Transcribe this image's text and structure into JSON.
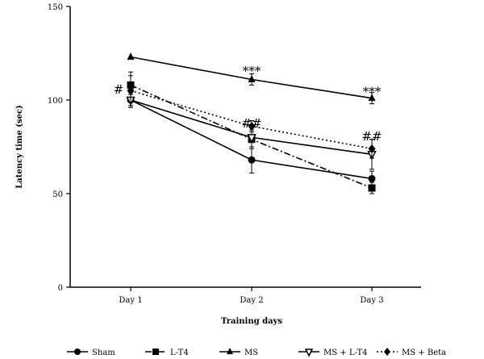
{
  "chart_data": {
    "type": "line",
    "title": "",
    "xlabel": "Training days",
    "ylabel": "Latency time (sec)",
    "categories": [
      "Day 1",
      "Day 2",
      "Day 3"
    ],
    "yticks": [
      "0",
      "50",
      "100",
      "150"
    ],
    "ylim": [
      0,
      150
    ],
    "grid": false,
    "legend_position": "bottom",
    "series": [
      {
        "name": "Sham",
        "marker": "circle",
        "dash": "solid",
        "values": [
          100,
          68,
          58
        ],
        "errors": [
          4,
          7,
          4
        ]
      },
      {
        "name": "L-T4",
        "marker": "square",
        "dash": "dashdot",
        "values": [
          108,
          79,
          53
        ],
        "errors": [
          7,
          5,
          3
        ]
      },
      {
        "name": "MS",
        "marker": "triangle-up",
        "dash": "solid",
        "values": [
          123,
          111,
          101
        ],
        "errors": [
          0,
          3,
          3
        ]
      },
      {
        "name": "MS + L-T4",
        "marker": "triangle-down",
        "dash": "solid",
        "values": [
          100,
          80,
          71
        ],
        "errors": [
          3,
          5,
          8
        ]
      },
      {
        "name": "MS + Beta",
        "marker": "diamond",
        "dash": "dotted",
        "values": [
          105,
          86,
          74
        ],
        "errors": [
          8,
          3,
          5
        ]
      }
    ],
    "annotations": [
      {
        "text": "#",
        "category": "Day 1",
        "y": 106
      },
      {
        "text": "***",
        "category": "Day 2",
        "y": 116
      },
      {
        "text": "##",
        "category": "Day 2",
        "y": 88
      },
      {
        "text": "***",
        "category": "Day 3",
        "y": 105
      },
      {
        "text": "##",
        "category": "Day 3",
        "y": 81
      }
    ]
  }
}
